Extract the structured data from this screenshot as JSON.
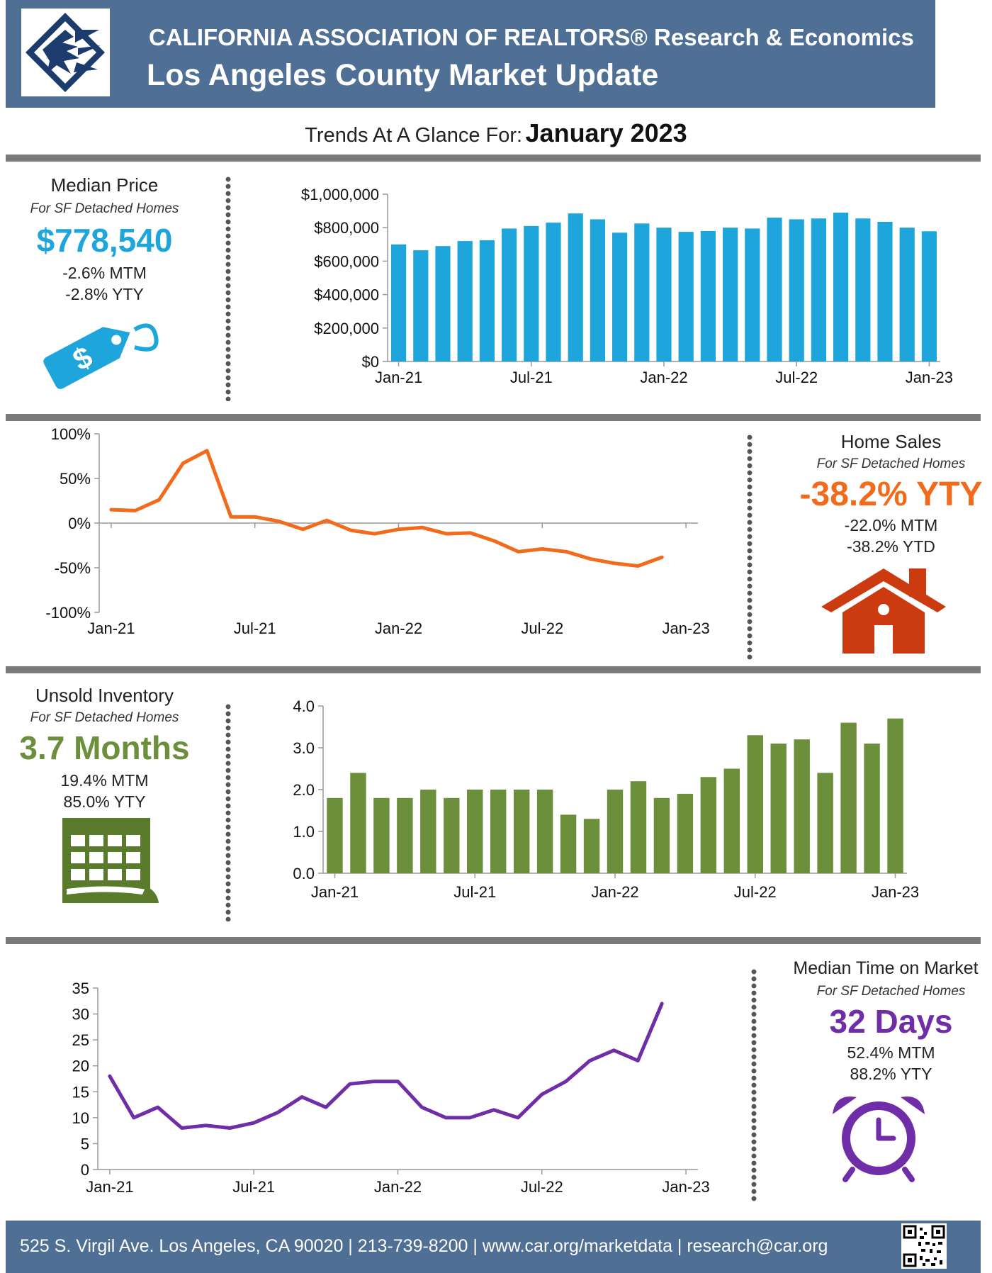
{
  "header": {
    "org": "CALIFORNIA ASSOCIATION OF REALTORS® Research & Economics",
    "title": "Los Angeles County Market Update"
  },
  "subtitle": {
    "prefix": "Trends At A Glance For:",
    "month": "January 2023"
  },
  "median_price": {
    "title": "Median Price",
    "sub": "For SF Detached Homes",
    "value": "$778,540",
    "mtm": "-2.6% MTM",
    "yty": "-2.8% YTY",
    "color": "#1ea6dc",
    "icon": "price-tag-icon"
  },
  "home_sales": {
    "title": "Home Sales",
    "sub": "For SF Detached Homes",
    "value": "-38.2% YTY",
    "mtm": "-22.0% MTM",
    "ytd": "-38.2% YTD",
    "color": "#f26b1d",
    "icon": "house-icon"
  },
  "inventory": {
    "title": "Unsold Inventory",
    "sub": "For SF Detached Homes",
    "value": "3.7 Months",
    "mtm": "19.4% MTM",
    "yty": "85.0% YTY",
    "color": "#6b8f3a",
    "icon": "calendar-icon"
  },
  "time_on_market": {
    "title": "Median Time on Market",
    "sub": "For SF Detached Homes",
    "value": "32 Days",
    "mtm": "52.4% MTM",
    "yty": "88.2% YTY",
    "color": "#6f2da8",
    "icon": "alarm-clock-icon"
  },
  "footer": {
    "text": "525 S. Virgil Ave. Los Angeles, CA 90020 | 213-739-8200 | www.car.org/marketdata | research@car.org"
  },
  "chart_data": [
    {
      "id": "median-price",
      "type": "bar",
      "color": "#1ea6dc",
      "ylim": [
        0,
        1000000
      ],
      "y_ticks": [
        0,
        200000,
        400000,
        600000,
        800000,
        1000000
      ],
      "y_tick_labels": [
        "$0",
        "$200,000",
        "$400,000",
        "$600,000",
        "$800,000",
        "$1,000,000"
      ],
      "x_tick_labels": [
        "Jan-21",
        "Jul-21",
        "Jan-22",
        "Jul-22",
        "Jan-23"
      ],
      "values": [
        700000,
        665000,
        690000,
        720000,
        725000,
        795000,
        810000,
        830000,
        885000,
        850000,
        770000,
        825000,
        800000,
        775000,
        780000,
        800000,
        795000,
        860000,
        850000,
        855000,
        890000,
        855000,
        835000,
        800000,
        778540
      ]
    },
    {
      "id": "home-sales",
      "type": "line",
      "color": "#f26b1d",
      "ylim": [
        -100,
        100
      ],
      "y_ticks": [
        -100,
        -50,
        0,
        50,
        100
      ],
      "y_tick_labels": [
        "-100%",
        "-50%",
        "0%",
        "50%",
        "100%"
      ],
      "x_tick_labels": [
        "Jan-21",
        "Jul-21",
        "Jan-22",
        "Jul-22",
        "Jan-23"
      ],
      "values": [
        15,
        14,
        26,
        67,
        81,
        7,
        7,
        2,
        -7,
        3,
        -8,
        -12,
        -7,
        -5,
        -12,
        -11,
        -20,
        -32,
        -29,
        -32,
        -40,
        -45,
        -48,
        -38.2
      ]
    },
    {
      "id": "inventory",
      "type": "bar",
      "color": "#6b8f3a",
      "ylim": [
        0,
        4
      ],
      "y_ticks": [
        0,
        1,
        2,
        3,
        4
      ],
      "y_tick_labels": [
        "0.0",
        "1.0",
        "2.0",
        "3.0",
        "4.0"
      ],
      "x_tick_labels": [
        "Jan-21",
        "Jul-21",
        "Jan-22",
        "Jul-22",
        "Jan-23"
      ],
      "values": [
        1.8,
        2.4,
        1.8,
        1.8,
        2.0,
        1.8,
        2.0,
        2.0,
        2.0,
        2.0,
        1.4,
        1.3,
        2.0,
        2.2,
        1.8,
        1.9,
        2.3,
        2.5,
        3.3,
        3.1,
        3.2,
        2.4,
        3.6,
        3.1,
        3.7
      ]
    },
    {
      "id": "time-on-market",
      "type": "line",
      "color": "#6f2da8",
      "ylim": [
        0,
        35
      ],
      "y_ticks": [
        0,
        5,
        10,
        15,
        20,
        25,
        30,
        35
      ],
      "y_tick_labels": [
        "0",
        "5",
        "10",
        "15",
        "20",
        "25",
        "30",
        "35"
      ],
      "x_tick_labels": [
        "Jan-21",
        "Jul-21",
        "Jan-22",
        "Jul-22",
        "Jan-23"
      ],
      "values": [
        18,
        10,
        12,
        8,
        8.5,
        8,
        9,
        11,
        14,
        12,
        16.5,
        17,
        17,
        12,
        10,
        10,
        11.5,
        10,
        14.5,
        17,
        21,
        23,
        21,
        32
      ]
    }
  ]
}
